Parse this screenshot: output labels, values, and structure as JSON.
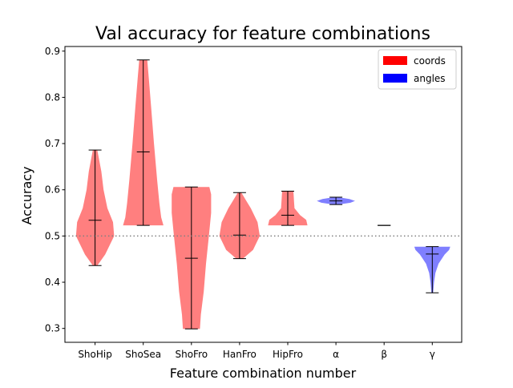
{
  "chart_data": {
    "type": "violin",
    "title": "Val accuracy for feature combinations",
    "xlabel": "Feature combination number",
    "ylabel": "Accuracy",
    "ylim": [
      0.27,
      0.91
    ],
    "yticks": [
      "0.3",
      "0.4",
      "0.5",
      "0.6",
      "0.7",
      "0.8",
      "0.9"
    ],
    "grid": false,
    "legend_position": "top-right",
    "reference_line": {
      "value": 0.5,
      "style": "dotted",
      "color": "#808080"
    },
    "legend": [
      {
        "label": "coords",
        "color": "#ff0000"
      },
      {
        "label": "angles",
        "color": "#0000ff"
      }
    ],
    "categories": [
      "ShoHip",
      "ShoSea",
      "ShoFro",
      "HanFro",
      "HipFro",
      "α",
      "β",
      "γ"
    ],
    "series": [
      {
        "category": "ShoHip",
        "group": "coords",
        "min": 0.436,
        "max": 0.686,
        "median": 0.534,
        "density": [
          [
            0.436,
            0.1
          ],
          [
            0.46,
            0.45
          ],
          [
            0.5,
            0.85
          ],
          [
            0.53,
            0.8
          ],
          [
            0.56,
            0.55
          ],
          [
            0.6,
            0.38
          ],
          [
            0.64,
            0.28
          ],
          [
            0.686,
            0.1
          ]
        ]
      },
      {
        "category": "ShoSea",
        "group": "coords",
        "min": 0.523,
        "max": 0.881,
        "median": 0.682,
        "density": [
          [
            0.523,
            0.9
          ],
          [
            0.54,
            0.8
          ],
          [
            0.57,
            0.72
          ],
          [
            0.62,
            0.62
          ],
          [
            0.7,
            0.48
          ],
          [
            0.78,
            0.35
          ],
          [
            0.84,
            0.25
          ],
          [
            0.881,
            0.18
          ]
        ]
      },
      {
        "category": "ShoFro",
        "group": "coords",
        "min": 0.299,
        "max": 0.606,
        "median": 0.452,
        "density": [
          [
            0.299,
            0.38
          ],
          [
            0.33,
            0.42
          ],
          [
            0.38,
            0.55
          ],
          [
            0.44,
            0.65
          ],
          [
            0.5,
            0.78
          ],
          [
            0.55,
            0.88
          ],
          [
            0.59,
            0.88
          ],
          [
            0.606,
            0.8
          ]
        ]
      },
      {
        "category": "HanFro",
        "group": "coords",
        "min": 0.451,
        "max": 0.594,
        "median": 0.502,
        "density": [
          [
            0.451,
            0.15
          ],
          [
            0.47,
            0.6
          ],
          [
            0.5,
            0.9
          ],
          [
            0.53,
            0.8
          ],
          [
            0.56,
            0.5
          ],
          [
            0.58,
            0.25
          ],
          [
            0.594,
            0.08
          ]
        ]
      },
      {
        "category": "HipFro",
        "group": "coords",
        "min": 0.523,
        "max": 0.597,
        "median": 0.545,
        "density": [
          [
            0.523,
            0.88
          ],
          [
            0.535,
            0.82
          ],
          [
            0.545,
            0.55
          ],
          [
            0.56,
            0.3
          ],
          [
            0.575,
            0.28
          ],
          [
            0.59,
            0.26
          ],
          [
            0.597,
            0.25
          ]
        ]
      },
      {
        "category": "α",
        "group": "angles",
        "min": 0.568,
        "max": 0.584,
        "median": 0.576,
        "density": [
          [
            0.568,
            0.1
          ],
          [
            0.572,
            0.65
          ],
          [
            0.576,
            0.85
          ],
          [
            0.58,
            0.6
          ],
          [
            0.584,
            0.1
          ]
        ]
      },
      {
        "category": "β",
        "group": "angles",
        "min": 0.523,
        "max": 0.523,
        "median": 0.523,
        "density": []
      },
      {
        "category": "γ",
        "group": "angles",
        "min": 0.377,
        "max": 0.477,
        "median": 0.461,
        "density": [
          [
            0.377,
            0.04
          ],
          [
            0.4,
            0.08
          ],
          [
            0.42,
            0.14
          ],
          [
            0.44,
            0.28
          ],
          [
            0.46,
            0.55
          ],
          [
            0.47,
            0.75
          ],
          [
            0.477,
            0.8
          ]
        ]
      }
    ]
  }
}
